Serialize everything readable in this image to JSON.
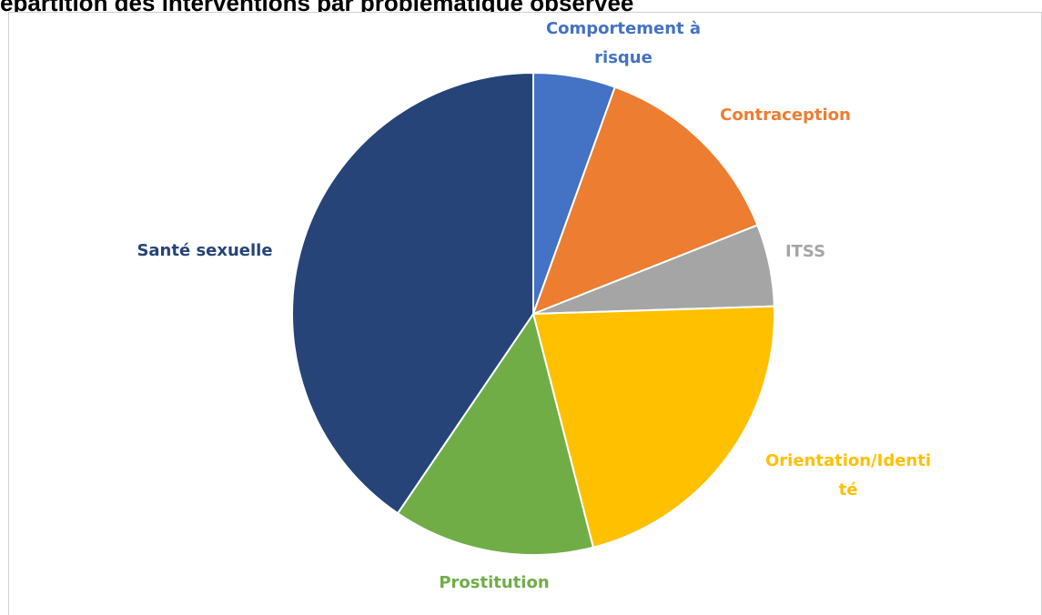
{
  "title": "épartition des interventions par problématique observée",
  "chart_data": {
    "type": "pie",
    "start_angle_deg": 0,
    "direction": "clockwise",
    "slices": [
      {
        "label": [
          "Comportement à",
          "risque"
        ],
        "value": 5.5,
        "color": "#4472C4"
      },
      {
        "label": [
          "Contraception"
        ],
        "value": 13.5,
        "color": "#ED7D31"
      },
      {
        "label": [
          "ITSS"
        ],
        "value": 5.5,
        "color": "#A5A5A5"
      },
      {
        "label": [
          "Orientation/Identi",
          "té"
        ],
        "value": 21.5,
        "color": "#FFC000"
      },
      {
        "label": [
          "Prostitution"
        ],
        "value": 13.5,
        "color": "#70AD47"
      },
      {
        "label": [
          "Santé sexuelle"
        ],
        "value": 40.5,
        "color": "#264478"
      }
    ]
  }
}
